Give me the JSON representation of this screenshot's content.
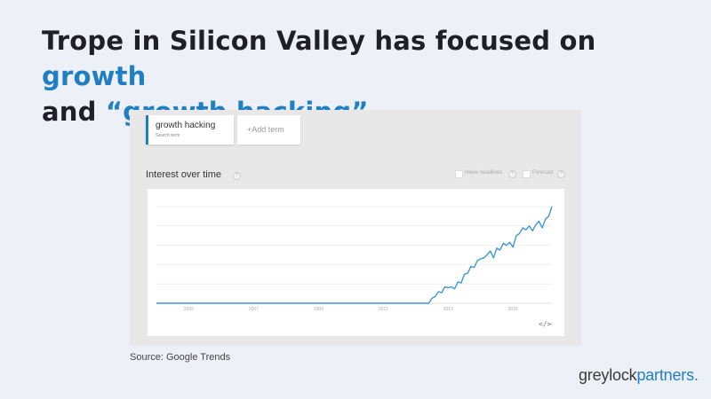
{
  "slide": {
    "title_part1": "Trope in Silicon Valley has focused on ",
    "title_growth": "growth",
    "title_part2": "and ",
    "title_quote": "“growth hacking”",
    "source": "Source: Google Trends",
    "logo_grey": "greylock",
    "logo_blue": "partners."
  },
  "trends": {
    "term": "growth hacking",
    "term_sub": "Search term",
    "add_term": "+Add term",
    "section_title": "Interest over time",
    "news_headlines": "News headlines",
    "forecast": "Forecast",
    "help_glyph": "?",
    "embed_glyph": "</>"
  },
  "chart_data": {
    "type": "line",
    "title": "Interest over time",
    "xlabel": "",
    "ylabel": "",
    "x_ticks": [
      "2005",
      "2007",
      "2009",
      "2011",
      "2013",
      "2015"
    ],
    "xlim": [
      2004,
      2016.2
    ],
    "ylim": [
      0,
      100
    ],
    "grid": true,
    "series": [
      {
        "name": "growth hacking",
        "color": "#3d98d6",
        "x": [
          2004,
          2012.4,
          2012.5,
          2012.6,
          2012.7,
          2012.8,
          2012.9,
          2013.0,
          2013.1,
          2013.2,
          2013.3,
          2013.4,
          2013.5,
          2013.6,
          2013.7,
          2013.8,
          2013.9,
          2014.0,
          2014.1,
          2014.2,
          2014.3,
          2014.4,
          2014.5,
          2014.6,
          2014.7,
          2014.8,
          2014.9,
          2015.0,
          2015.1,
          2015.2,
          2015.3,
          2015.4,
          2015.5,
          2015.6,
          2015.7,
          2015.8,
          2015.9,
          2016.0,
          2016.1,
          2016.2
        ],
        "y": [
          0,
          0,
          5,
          7,
          12,
          11,
          17,
          16,
          17,
          15,
          22,
          21,
          30,
          31,
          38,
          37,
          44,
          46,
          47,
          50,
          54,
          47,
          57,
          55,
          62,
          60,
          63,
          58,
          70,
          72,
          78,
          76,
          80,
          75,
          81,
          85,
          78,
          87,
          90,
          100
        ]
      }
    ]
  }
}
